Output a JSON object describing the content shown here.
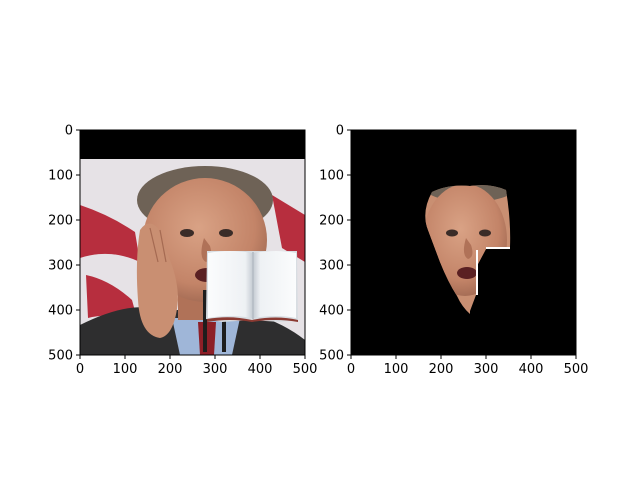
{
  "figure": {
    "layout": "two image panels side by side"
  },
  "panels": [
    {
      "id": "left",
      "kind": "photograph",
      "content": "Photo of a man with his hand on his cheek, mouth open, microphones in front; black band at the top; an open book graphic overlays the lower right",
      "x_ticks": [
        "0",
        "100",
        "200",
        "300",
        "400",
        "500"
      ],
      "y_ticks": [
        "0",
        "100",
        "200",
        "300",
        "400",
        "500"
      ]
    },
    {
      "id": "right",
      "kind": "segmentation-mask-result",
      "content": "Same face cut out on a black background; rest of image is black",
      "x_ticks": [
        "0",
        "100",
        "200",
        "300",
        "400",
        "500"
      ],
      "y_ticks": [
        "0",
        "100",
        "200",
        "300",
        "400",
        "500"
      ]
    }
  ],
  "chart_data": [
    {
      "type": "heatmap",
      "title": "",
      "xlabel": "",
      "ylabel": "",
      "xlim": [
        0,
        500
      ],
      "ylim": [
        500,
        0
      ],
      "x_ticks": [
        0,
        100,
        200,
        300,
        400,
        500
      ],
      "y_ticks": [
        0,
        100,
        200,
        300,
        400,
        500
      ],
      "grid": false,
      "image": "photo of face with book overlay"
    },
    {
      "type": "heatmap",
      "title": "",
      "xlabel": "",
      "ylabel": "",
      "xlim": [
        0,
        500
      ],
      "ylim": [
        500,
        0
      ],
      "x_ticks": [
        0,
        100,
        200,
        300,
        400,
        500
      ],
      "y_ticks": [
        0,
        100,
        200,
        300,
        400,
        500
      ],
      "grid": false,
      "image": "face segmentation on black"
    }
  ],
  "colors": {
    "black": "#000000",
    "skin": "#c98f72",
    "skin_shadow": "#a56a52",
    "suit": "#2e2e2f",
    "tie": "#8d1f27",
    "shirt": "#9fb6d8",
    "bg_light": "#e6e2e6",
    "flag_red": "#b72e3e",
    "hair": "#6e6256",
    "book_page": "#f4f6f8"
  }
}
